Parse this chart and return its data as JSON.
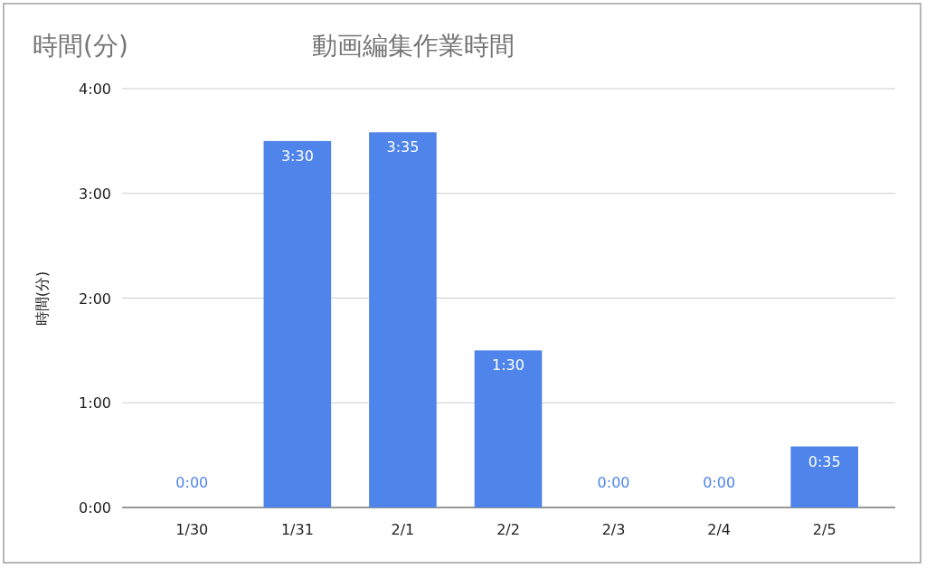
{
  "chart_data": {
    "type": "bar",
    "title": "動画編集作業時間",
    "ylabel": "時間(分)",
    "annotations": [
      "時間(分)"
    ],
    "categories": [
      "1/30",
      "1/31",
      "2/1",
      "2/2",
      "2/3",
      "2/4",
      "2/5"
    ],
    "values": [
      0,
      3.5,
      3.583,
      1.5,
      0,
      0,
      0.583
    ],
    "value_labels": [
      "0:00",
      "3:30",
      "3:35",
      "1:30",
      "0:00",
      "0:00",
      "0:35"
    ],
    "color": "#4f84eb",
    "ylim": [
      0,
      4
    ],
    "yticks": [
      {
        "value": 0,
        "label": "0:00"
      },
      {
        "value": 1,
        "label": "1:00"
      },
      {
        "value": 2,
        "label": "2:00"
      },
      {
        "value": 3,
        "label": "3:00"
      },
      {
        "value": 4,
        "label": "4:00"
      }
    ],
    "grid": "y"
  }
}
